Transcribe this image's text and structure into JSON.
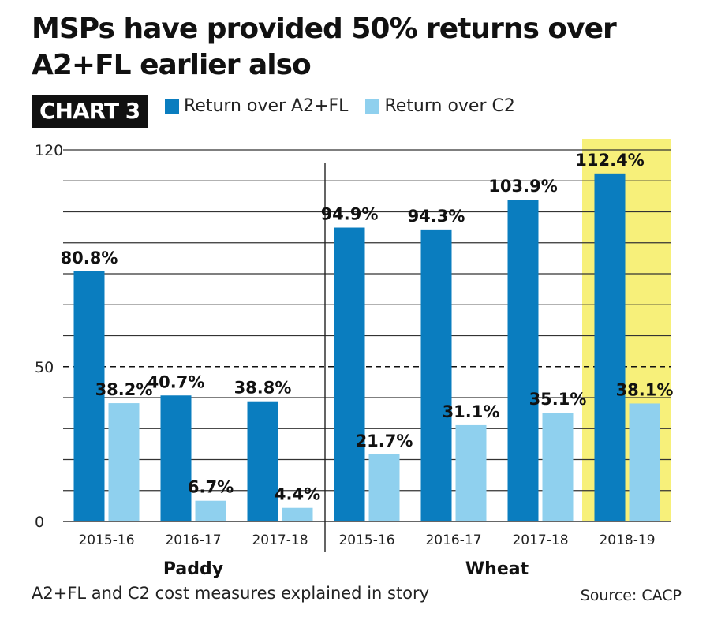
{
  "title": {
    "line1": "MSPs have provided 50% returns over",
    "line2": "A2+FL earlier also"
  },
  "chart_tag": "CHART 3",
  "legend": [
    {
      "label": "Return over A2+FL",
      "color": "#0a7dbf"
    },
    {
      "label": "Return over C2",
      "color": "#8fd0ee"
    }
  ],
  "footnote": "A2+FL and C2 cost measures explained in story",
  "source": "Source: CACP",
  "colors": {
    "highlight": "#f7f07a",
    "grid": "#333333"
  },
  "chart_data": {
    "type": "bar",
    "title": "MSPs have provided 50% returns over A2+FL earlier also",
    "ylim": [
      0,
      120
    ],
    "yticks": [
      "0",
      "50",
      "120"
    ],
    "reference_line": 50,
    "grid": true,
    "legend_position": "top",
    "groups": [
      {
        "name": "Paddy",
        "categories": [
          "2015-16",
          "2016-17",
          "2017-18"
        ]
      },
      {
        "name": "Wheat",
        "categories": [
          "2015-16",
          "2016-17",
          "2017-18",
          "2018-19"
        ]
      }
    ],
    "categories": [
      "2015-16",
      "2016-17",
      "2017-18",
      "2015-16",
      "2016-17",
      "2017-18",
      "2018-19"
    ],
    "series": [
      {
        "name": "Return over A2+FL",
        "values": [
          80.8,
          40.7,
          38.8,
          94.9,
          94.3,
          103.9,
          112.4
        ],
        "labels": [
          "80.8%",
          "40.7%",
          "38.8%",
          "94.9%",
          "94.3%",
          "103.9%",
          "112.4%"
        ]
      },
      {
        "name": "Return over C2",
        "values": [
          38.2,
          6.7,
          4.4,
          21.7,
          31.1,
          35.1,
          38.1
        ],
        "labels": [
          "38.2%",
          "6.7%",
          "4.4%",
          "21.7%",
          "31.1%",
          "35.1%",
          "38.1%"
        ]
      }
    ],
    "highlighted_category": "2018-19"
  }
}
